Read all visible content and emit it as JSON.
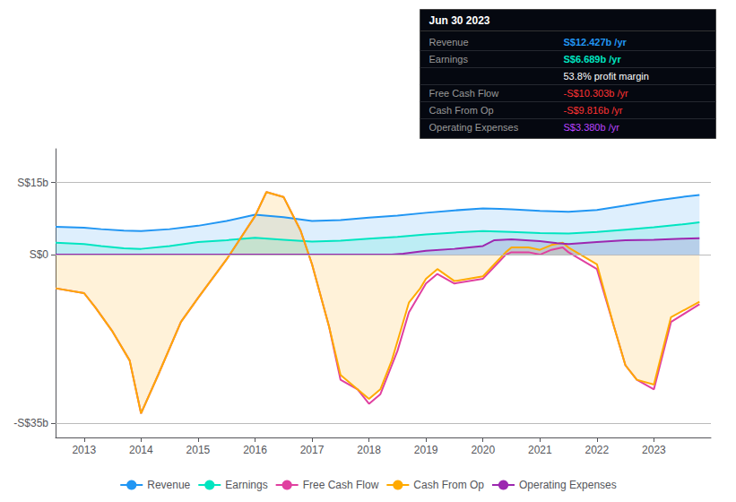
{
  "chart_data": {
    "type": "line",
    "xlim": [
      2012.5,
      2024.0
    ],
    "xticks": [
      2013,
      2014,
      2015,
      2016,
      2017,
      2018,
      2019,
      2020,
      2021,
      2022,
      2023
    ],
    "ylim": [
      -38,
      22
    ],
    "yticks": [
      {
        "value": 15,
        "label": "S$15b"
      },
      {
        "value": 0,
        "label": "S$0"
      },
      {
        "value": -35,
        "label": "-S$35b"
      }
    ],
    "grid": true,
    "legend": "bottom",
    "series": [
      {
        "name": "Revenue",
        "color": "#2196f3",
        "x": [
          2012.5,
          2013.0,
          2013.3,
          2013.7,
          2014.0,
          2014.5,
          2015.0,
          2015.5,
          2016.0,
          2016.5,
          2017.0,
          2017.5,
          2018.0,
          2018.5,
          2019.0,
          2019.5,
          2020.0,
          2020.3,
          2020.5,
          2021.0,
          2021.5,
          2022.0,
          2022.5,
          2023.0,
          2023.5,
          2023.8
        ],
        "values": [
          5.8,
          5.6,
          5.3,
          5.0,
          4.9,
          5.3,
          6.0,
          7.0,
          8.3,
          7.8,
          7.0,
          7.2,
          7.7,
          8.1,
          8.7,
          9.2,
          9.6,
          9.5,
          9.4,
          9.1,
          8.9,
          9.3,
          10.2,
          11.2,
          12.0,
          12.4
        ]
      },
      {
        "name": "Earnings",
        "color": "#00e5c0",
        "x": [
          2012.5,
          2013.0,
          2013.3,
          2013.7,
          2014.0,
          2014.5,
          2015.0,
          2015.5,
          2016.0,
          2016.5,
          2017.0,
          2017.5,
          2018.0,
          2018.5,
          2019.0,
          2019.5,
          2020.0,
          2020.5,
          2021.0,
          2021.5,
          2022.0,
          2022.5,
          2023.0,
          2023.5,
          2023.8
        ],
        "values": [
          2.5,
          2.2,
          1.8,
          1.3,
          1.2,
          1.8,
          2.6,
          3.0,
          3.5,
          3.1,
          2.7,
          2.9,
          3.3,
          3.7,
          4.2,
          4.6,
          4.9,
          4.7,
          4.5,
          4.4,
          4.7,
          5.2,
          5.7,
          6.3,
          6.7
        ]
      },
      {
        "name": "Free Cash Flow",
        "color": "#e040a0",
        "x": [
          2012.5,
          2013.0,
          2013.2,
          2013.5,
          2013.8,
          2014.0,
          2014.3,
          2014.7,
          2015.0,
          2015.5,
          2016.0,
          2016.2,
          2016.5,
          2016.8,
          2017.0,
          2017.3,
          2017.5,
          2017.8,
          2018.0,
          2018.2,
          2018.4,
          2018.5,
          2018.7,
          2018.9,
          2019.0,
          2019.2,
          2019.5,
          2020.0,
          2020.2,
          2020.4,
          2020.5,
          2020.8,
          2021.0,
          2021.2,
          2021.4,
          2021.5,
          2022.0,
          2022.3,
          2022.5,
          2022.7,
          2023.0,
          2023.3,
          2023.8
        ],
        "values": [
          -7,
          -8,
          -11,
          -16,
          -22,
          -33,
          -25,
          -14,
          -9,
          -1,
          8,
          13,
          12,
          5,
          -2,
          -15,
          -26,
          -28,
          -31,
          -29,
          -23,
          -20,
          -12,
          -8,
          -6,
          -4,
          -6,
          -5,
          -2.5,
          0,
          0.5,
          0.5,
          0,
          1,
          1.5,
          0.5,
          -3,
          -15,
          -23,
          -26,
          -28,
          -14,
          -10.3
        ]
      },
      {
        "name": "Cash From Op",
        "color": "#ffaa00",
        "x": [
          2012.5,
          2013.0,
          2013.2,
          2013.5,
          2013.8,
          2014.0,
          2014.3,
          2014.7,
          2015.0,
          2015.5,
          2016.0,
          2016.2,
          2016.5,
          2016.8,
          2017.0,
          2017.3,
          2017.5,
          2017.7,
          2018.0,
          2018.2,
          2018.4,
          2018.5,
          2018.7,
          2018.9,
          2019.0,
          2019.2,
          2019.5,
          2020.0,
          2020.2,
          2020.4,
          2020.5,
          2020.8,
          2021.0,
          2021.2,
          2021.4,
          2021.5,
          2022.0,
          2022.3,
          2022.5,
          2022.7,
          2023.0,
          2023.3,
          2023.8
        ],
        "values": [
          -7,
          -8,
          -11,
          -16,
          -22,
          -33,
          -25,
          -14,
          -9,
          -1,
          8,
          13,
          12,
          5,
          -2,
          -15,
          -25,
          -27,
          -30,
          -28,
          -22,
          -18,
          -10,
          -7,
          -5,
          -3,
          -5.5,
          -4.5,
          -2,
          0.5,
          1.5,
          1.5,
          1,
          2,
          2.5,
          1.5,
          -2,
          -15,
          -23,
          -26,
          -27,
          -13,
          -9.8
        ]
      },
      {
        "name": "Operating Expenses",
        "color": "#9c27b0",
        "x": [
          2012.5,
          2018.4,
          2018.6,
          2019.0,
          2019.5,
          2020.0,
          2020.2,
          2020.5,
          2021.0,
          2021.3,
          2021.5,
          2022.0,
          2022.5,
          2023.0,
          2023.5,
          2023.8
        ],
        "values": [
          0,
          0,
          0.2,
          0.8,
          1.2,
          1.8,
          3.0,
          3.2,
          2.8,
          2.4,
          2.2,
          2.6,
          3.0,
          3.1,
          3.3,
          3.4
        ]
      }
    ],
    "annotation": {
      "title": "Jun 30 2023",
      "rows": [
        {
          "label": "Revenue",
          "value": "S$12.427b /yr",
          "color": "#2196f3"
        },
        {
          "label": "Earnings",
          "value": "S$6.689b /yr",
          "color": "#00e5c0"
        },
        {
          "value": "53.8% profit margin",
          "color": "#ffffff"
        },
        {
          "label": "Free Cash Flow",
          "value": "-S$10.303b /yr",
          "color": "#ff3333"
        },
        {
          "label": "Cash From Op",
          "value": "-S$9.816b /yr",
          "color": "#ff3333"
        },
        {
          "label": "Operating Expenses",
          "value": "S$3.380b /yr",
          "color": "#bb44ff"
        }
      ]
    }
  }
}
